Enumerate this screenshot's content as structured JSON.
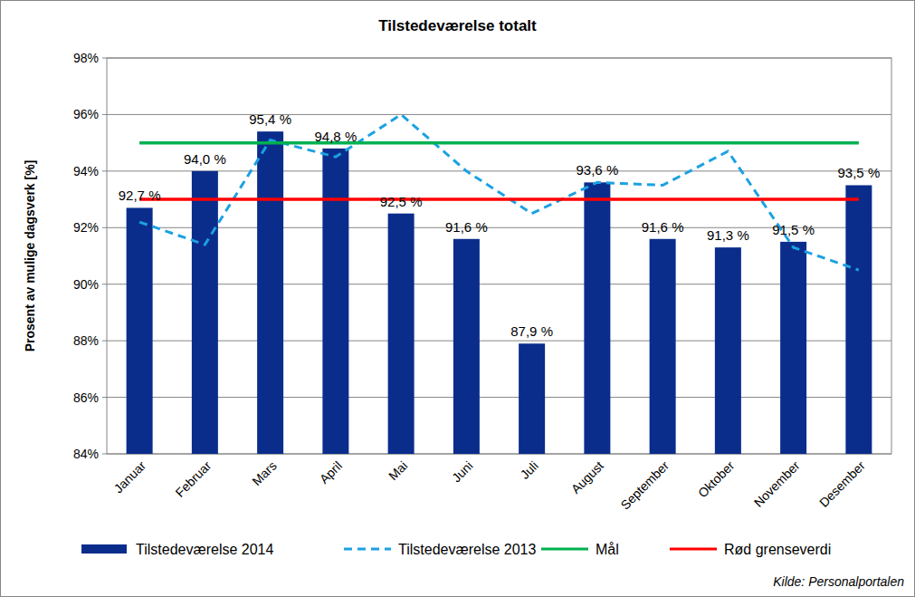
{
  "chart_data": {
    "type": "bar",
    "title": "Tilstedeværelse totalt",
    "y_label": "Prosent av mulige dagsverk [%]",
    "source": "Kilde: Personalportalen",
    "categories": [
      "Januar",
      "Februar",
      "Mars",
      "April",
      "Mai",
      "Juni",
      "Juli",
      "August",
      "September",
      "Oktober",
      "November",
      "Desember"
    ],
    "series": [
      {
        "name": "Tilstedeværelse 2014",
        "type": "bar",
        "color": "#0a2d8c",
        "data_labels": true,
        "values": [
          92.7,
          94.0,
          95.4,
          94.8,
          92.5,
          91.6,
          87.9,
          93.6,
          91.6,
          91.3,
          91.5,
          93.5
        ],
        "value_labels": [
          "92,7 %",
          "94,0 %",
          "95,4 %",
          "94,8 %",
          "92,5 %",
          "91,6 %",
          "87,9 %",
          "93,6 %",
          "91,6 %",
          "91,3 %",
          "91,5 %",
          "93,5 %"
        ]
      },
      {
        "name": "Tilstedeværelse 2013",
        "type": "line",
        "color": "#1ba1e2",
        "line_style": "dashed",
        "values": [
          92.2,
          91.4,
          95.1,
          94.5,
          96.0,
          94.0,
          92.5,
          93.6,
          93.5,
          94.7,
          91.3,
          90.5
        ]
      },
      {
        "name": "Mål",
        "type": "line",
        "color": "#00b050",
        "line_style": "solid",
        "values": [
          95,
          95,
          95,
          95,
          95,
          95,
          95,
          95,
          95,
          95,
          95,
          95
        ]
      },
      {
        "name": "Rød grenseverdi",
        "type": "line",
        "color": "#ff0000",
        "line_style": "solid",
        "values": [
          93,
          93,
          93,
          93,
          93,
          93,
          93,
          93,
          93,
          93,
          93,
          93
        ]
      }
    ],
    "ylim": [
      84,
      98
    ],
    "yticks": [
      {
        "value": 84,
        "label": "84%"
      },
      {
        "value": 86,
        "label": "86%"
      },
      {
        "value": 88,
        "label": "88%"
      },
      {
        "value": 90,
        "label": "90%"
      },
      {
        "value": 92,
        "label": "92%"
      },
      {
        "value": 94,
        "label": "94%"
      },
      {
        "value": 96,
        "label": "96%"
      },
      {
        "value": 98,
        "label": "98%"
      }
    ],
    "grid": true,
    "legend": "bottom"
  }
}
